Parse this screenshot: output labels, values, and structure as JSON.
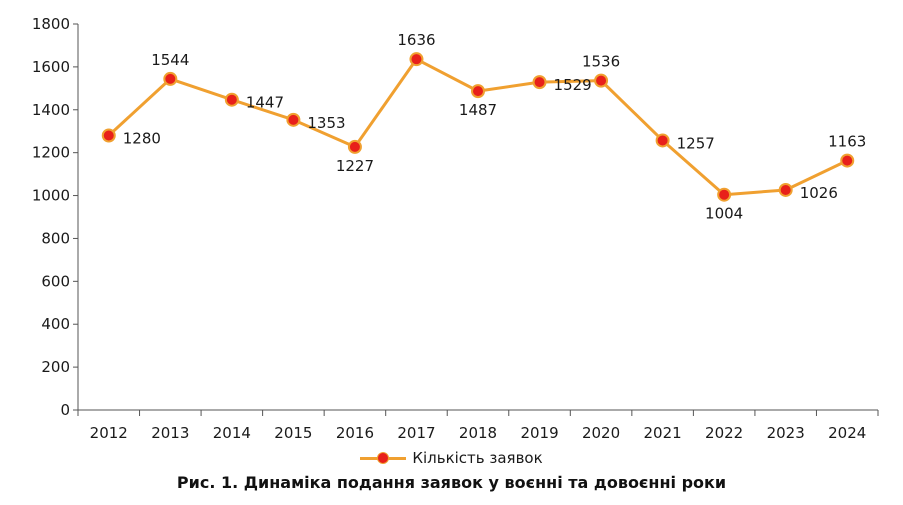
{
  "caption": "Рис. 1. Динаміка подання заявок у воєнні та довоєнні роки",
  "chart_data": {
    "type": "line",
    "title": "",
    "xlabel": "",
    "ylabel": "",
    "categories": [
      "2012",
      "2013",
      "2014",
      "2015",
      "2016",
      "2017",
      "2018",
      "2019",
      "2020",
      "2021",
      "2022",
      "2023",
      "2024"
    ],
    "series": [
      {
        "name": "Кількість заявок",
        "values": [
          1280,
          1544,
          1447,
          1353,
          1227,
          1636,
          1487,
          1529,
          1536,
          1257,
          1004,
          1026,
          1163
        ],
        "color": "#f0a030",
        "marker_color": "#e8201a"
      }
    ],
    "ylim": [
      0,
      1800
    ],
    "yticks": [
      0,
      200,
      400,
      600,
      800,
      1000,
      1200,
      1400,
      1600,
      1800
    ],
    "grid": false,
    "legend": "bottom"
  }
}
